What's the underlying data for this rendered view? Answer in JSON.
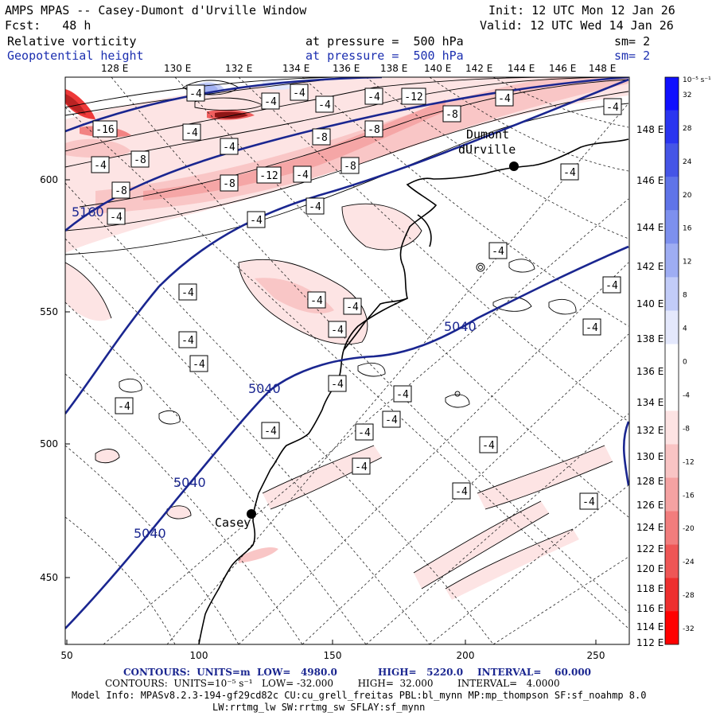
{
  "header": {
    "title": "AMPS MPAS -- Casey-Dumont d'Urville Window",
    "init": "Init: 12 UTC Mon 12 Jan 26",
    "fcst": "Fcst:   48 h",
    "valid": "Valid: 12 UTC Wed 14 Jan 26",
    "field1": "Relative vorticity",
    "field1_level": "at pressure =  500 hPa",
    "field1_sm": "sm= 2",
    "field2": "Geopotential height",
    "field2_level": "at pressure =  500 hPa",
    "field2_sm": "sm= 2"
  },
  "top_lon_labels": [
    "128 E",
    "130 E",
    "132 E",
    "134 E",
    "136 E",
    "138 E",
    "140 E",
    "142 E",
    "144 E",
    "146 E",
    "148 E"
  ],
  "right_lon_labels": [
    "148 E",
    "146 E",
    "144 E",
    "142 E",
    "140 E",
    "138 E",
    "136 E",
    "134 E",
    "132 E",
    "130 E",
    "128 E",
    "126 E",
    "124 E",
    "122 E",
    "120 E",
    "118 E",
    "116 E",
    "114 E",
    "112 E"
  ],
  "x_ticks": [
    "50",
    "100",
    "150",
    "200",
    "250"
  ],
  "y_ticks": [
    "600",
    "550",
    "500",
    "450"
  ],
  "colorbar": {
    "units": "10⁻⁵ s⁻¹",
    "labels": [
      "32",
      "28",
      "24",
      "20",
      "16",
      "12",
      "8",
      "4",
      "0",
      "-4",
      "-8",
      "-12",
      "-16",
      "-20",
      "-24",
      "-28",
      "-32"
    ],
    "colors": [
      "#1010ff",
      "#2a35f0",
      "#4555e6",
      "#5f74e8",
      "#7d90ee",
      "#9eadf3",
      "#c2ccf8",
      "#e4e8fc",
      "#ffffff",
      "#ffffff",
      "#fde3e3",
      "#f9c4c4",
      "#f5a2a2",
      "#f27d7d",
      "#ef5656",
      "#ee2f2f",
      "#ff0000"
    ]
  },
  "stations": [
    "Dumont",
    "dUrville",
    "Casey"
  ],
  "height_labels": [
    "5160",
    "5040",
    "5040",
    "5040",
    "5040"
  ],
  "vort_labels": [
    "-4",
    "-4",
    "-4",
    "-4",
    "-4",
    "-4",
    "-4",
    "-8",
    "-8",
    "-8",
    "-8",
    "-8",
    "-8",
    "-8",
    "-12",
    "-12",
    "-16",
    "-4",
    "-4",
    "-4",
    "-4",
    "-4",
    "-4",
    "-4",
    "-4",
    "-4",
    "-4",
    "-4",
    "-4",
    "-4",
    "-4",
    "-4",
    "-4",
    "-4",
    "-4",
    "-4",
    "-4",
    "-4",
    "-4",
    "-4",
    "-4",
    "-4",
    "-4",
    "-4"
  ],
  "footer": {
    "line1_a": "CONTOURS:  UNITS=m  LOW=   4980.0",
    "line1_b": "HIGH=   5220.0",
    "line1_c": "INTERVAL=    60.000",
    "line2": "CONTOURS:  UNITS=10⁻⁵ s⁻¹   LOW= -32.000        HIGH=  32.000        INTERVAL=   4.0000",
    "model_info": "Model Info: MPASv8.2.3-194-gf29cd82c CU:cu_grell_freitas PBL:bl_mynn MP:mp_thompson SF:sf_noahmp 8.0",
    "model_info2": "LW:rrtmg_lw SW:rrtmg_sw SFLAY:sf_mynn"
  }
}
